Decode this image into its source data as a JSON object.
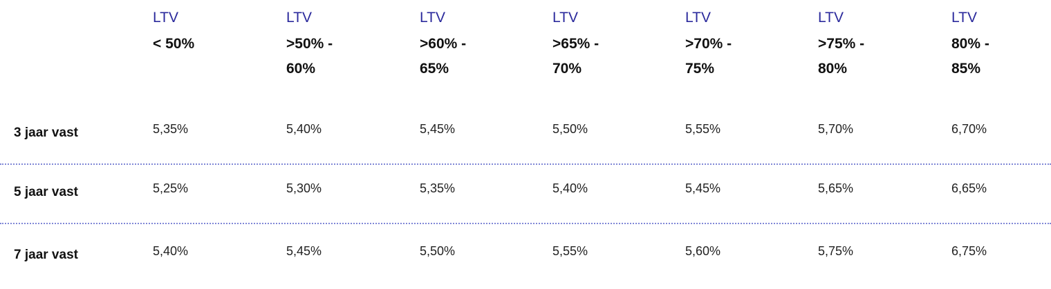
{
  "columns": [
    {
      "label": "LTV",
      "range": "< 50%"
    },
    {
      "label": "LTV",
      "range": ">50% -\n60%"
    },
    {
      "label": "LTV",
      "range": ">60% -\n65%"
    },
    {
      "label": "LTV",
      "range": ">65% -\n70%"
    },
    {
      "label": "LTV",
      "range": ">70% -\n75%"
    },
    {
      "label": "LTV",
      "range": ">75% -\n80%"
    },
    {
      "label": "LTV",
      "range": "80% -\n85%"
    }
  ],
  "rows": [
    {
      "label": "3 jaar vast",
      "values": [
        "5,35%",
        "5,40%",
        "5,45%",
        "5,50%",
        "5,55%",
        "5,70%",
        "6,70%"
      ]
    },
    {
      "label": "5 jaar vast",
      "values": [
        "5,25%",
        "5,30%",
        "5,35%",
        "5,40%",
        "5,45%",
        "5,65%",
        "6,65%"
      ]
    },
    {
      "label": "7 jaar vast",
      "values": [
        "5,40%",
        "5,45%",
        "5,50%",
        "5,55%",
        "5,60%",
        "5,75%",
        "6,75%"
      ]
    }
  ],
  "colors": {
    "ltv_label": "#2b2a9c",
    "divider": "#7f86d6"
  }
}
